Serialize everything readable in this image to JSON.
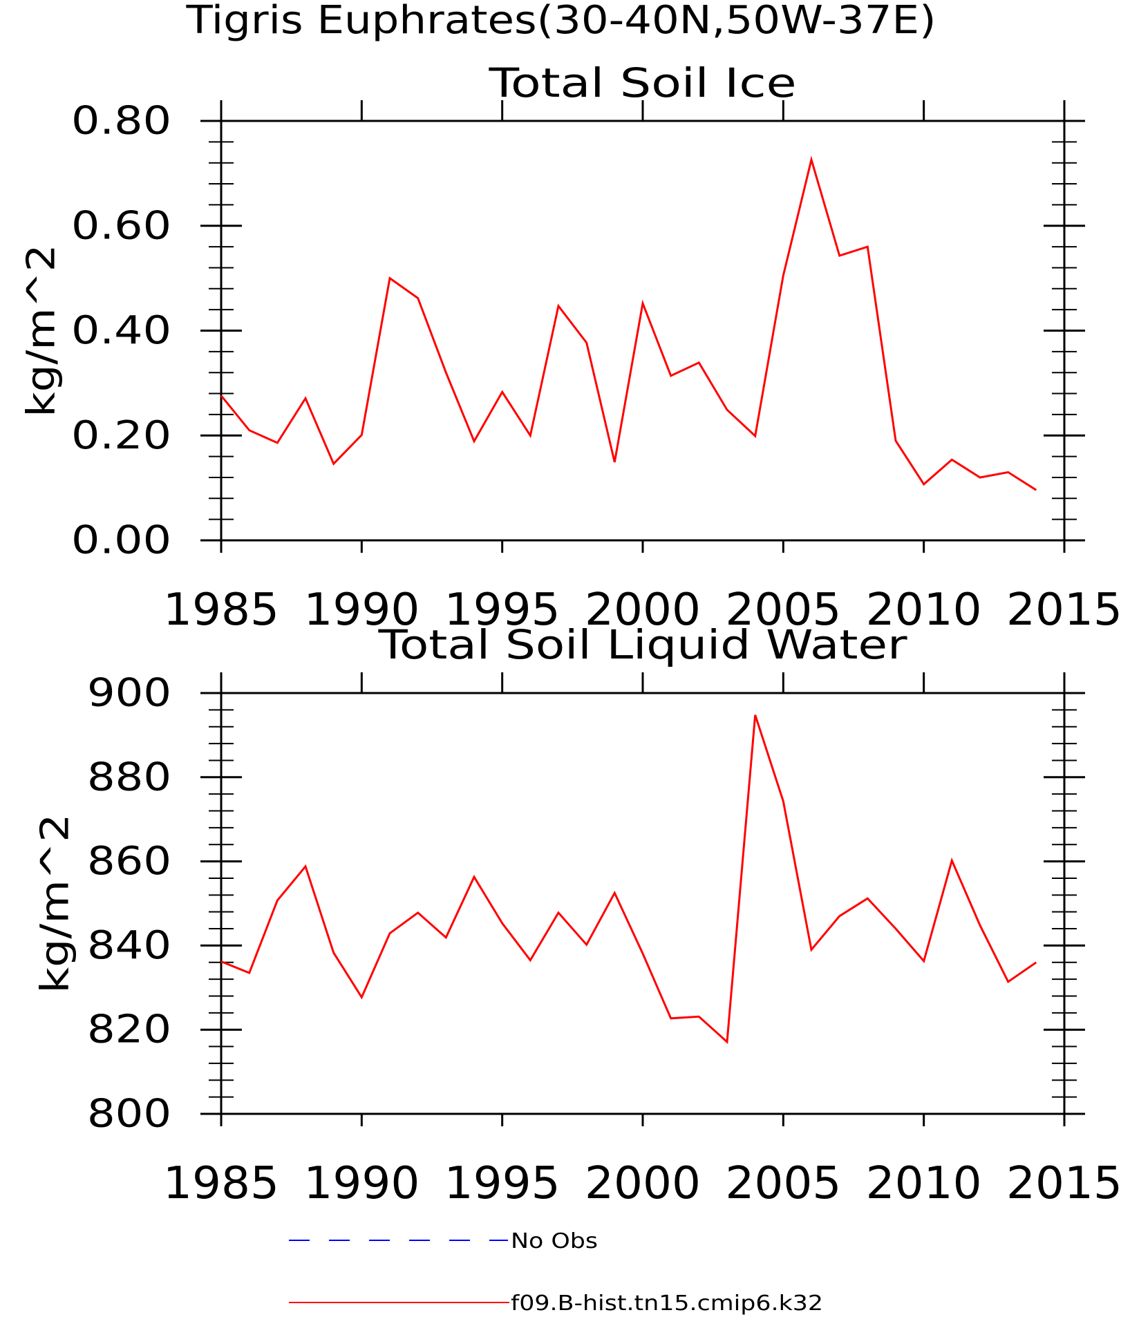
{
  "main_title": "Tigris Euphrates(30-40N,50W-37E)",
  "legend": {
    "entries": [
      {
        "label": "No Obs",
        "color": "#0000ff",
        "style": "dashed"
      },
      {
        "label": "f09.B-hist.tn15.cmip6.k32",
        "color": "#ff0000",
        "style": "solid"
      }
    ]
  },
  "chart_data": [
    {
      "type": "line",
      "title": "Total Soil Ice",
      "xlabel": "",
      "ylabel": "kg/m^2",
      "xlim": [
        1985,
        2015
      ],
      "ylim": [
        0.0,
        0.8
      ],
      "xticks": [
        1985,
        1990,
        1995,
        2000,
        2005,
        2010,
        2015
      ],
      "yticks": [
        "0.00",
        "0.20",
        "0.40",
        "0.60",
        "0.80"
      ],
      "grid": false,
      "series": [
        {
          "name": "f09.B-hist.tn15.cmip6.k32",
          "color": "#ff0000",
          "x": [
            1985,
            1986,
            1987,
            1988,
            1989,
            1990,
            1991,
            1992,
            1993,
            1994,
            1995,
            1996,
            1997,
            1998,
            1999,
            2000,
            2001,
            2002,
            2003,
            2004,
            2005,
            2006,
            2007,
            2008,
            2009,
            2010,
            2011,
            2012,
            2013,
            2014
          ],
          "values": [
            0.276,
            0.21,
            0.186,
            0.271,
            0.146,
            0.201,
            0.5,
            0.462,
            0.32,
            0.189,
            0.283,
            0.2,
            0.447,
            0.377,
            0.149,
            0.452,
            0.314,
            0.339,
            0.249,
            0.199,
            0.505,
            0.726,
            0.543,
            0.56,
            0.19,
            0.107,
            0.154,
            0.12,
            0.13,
            0.096
          ]
        }
      ]
    },
    {
      "type": "line",
      "title": "Total Soil Liquid Water",
      "xlabel": "",
      "ylabel": "kg/m^2",
      "xlim": [
        1985,
        2015
      ],
      "ylim": [
        800,
        900
      ],
      "xticks": [
        1985,
        1990,
        1995,
        2000,
        2005,
        2010,
        2015
      ],
      "yticks": [
        "800",
        "820",
        "840",
        "860",
        "880",
        "900"
      ],
      "grid": false,
      "series": [
        {
          "name": "f09.B-hist.tn15.cmip6.k32",
          "color": "#ff0000",
          "x": [
            1985,
            1986,
            1987,
            1988,
            1989,
            1990,
            1991,
            1992,
            1993,
            1994,
            1995,
            1996,
            1997,
            1998,
            1999,
            2000,
            2001,
            2002,
            2003,
            2004,
            2005,
            2006,
            2007,
            2008,
            2009,
            2010,
            2011,
            2012,
            2013,
            2014
          ],
          "values": [
            836.2,
            833.5,
            850.7,
            858.8,
            838.3,
            827.7,
            842.9,
            847.8,
            841.9,
            856.3,
            845.3,
            836.5,
            847.8,
            840.2,
            852.5,
            838.1,
            822.7,
            823.1,
            817.1,
            894.8,
            874.3,
            839.0,
            847.0,
            851.2,
            844.0,
            836.3,
            860.2,
            844.8,
            831.4,
            836.0
          ]
        }
      ]
    }
  ]
}
